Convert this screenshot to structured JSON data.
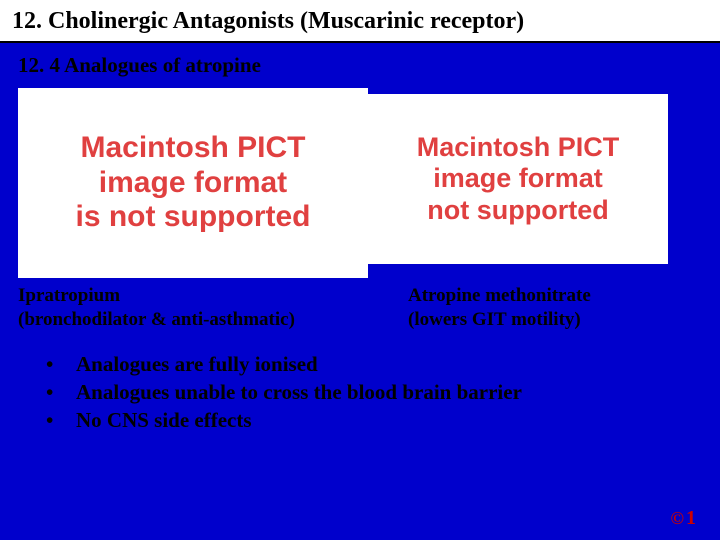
{
  "header": {
    "title": "12. Cholinergic Antagonists (Muscarinic receptor)"
  },
  "subtitle": "12. 4  Analogues of atropine",
  "pict": {
    "line1": "Macintosh PICT",
    "line2": "image format",
    "line3_left": "is not supported",
    "line3_right": "not supported"
  },
  "captions": {
    "left_name": "Ipratropium",
    "left_desc": "(bronchodilator & anti-asthmatic)",
    "right_name": "Atropine methonitrate",
    "right_desc": "(lowers GIT motility)"
  },
  "bullets": [
    "Analogues are fully ionised",
    "Analogues unable to cross the blood brain barrier",
    "No CNS side effects"
  ],
  "footer": {
    "copyright": "©",
    "page": "1"
  },
  "colors": {
    "background": "#0000cc",
    "header_bg": "#ffffff",
    "text": "#000000",
    "pict_text": "#e04040",
    "footer_text": "#cc0000"
  }
}
